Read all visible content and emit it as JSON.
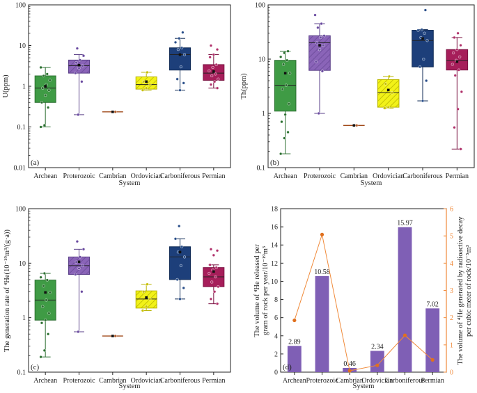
{
  "figure": {
    "background": "#ffffff"
  },
  "categories": [
    "Archean",
    "Proterozoic",
    "Cambrian",
    "Ordovician",
    "Carboniferous",
    "Permian"
  ],
  "colors": {
    "Archean": "#3f9b45",
    "Proterozoic": "#8a64b8",
    "Cambrian": "#c8642a",
    "Ordovician": "#f2f218",
    "Carboniferous": "#1d3f7a",
    "Permian": "#a61e5a",
    "bar": "#7f5fb5",
    "line": "#f08a3a",
    "axis_right": "#f08a3a"
  },
  "chart_data": [
    {
      "type": "box",
      "panel_label": "(a)",
      "ylabel": "U(ppm)",
      "xlabel": "System",
      "yscale": "log",
      "ylim": [
        0.01,
        100
      ],
      "yticks": [
        "0.01",
        "0.1",
        "1",
        "10",
        "100"
      ],
      "yticks_values": [
        0.01,
        0.1,
        1,
        10,
        100
      ],
      "categories": [
        "Archean",
        "Proterozoic",
        "Cambrian",
        "Ordovician",
        "Carboniferous",
        "Permian"
      ],
      "boxes": [
        {
          "name": "Archean",
          "whisker_low": 0.1,
          "q1": 0.4,
          "median": 0.9,
          "q3": 1.8,
          "whisker_high": 2.9,
          "mean": 1.0,
          "points": [
            0.1,
            0.11,
            0.3,
            0.4,
            0.6,
            0.8,
            0.9,
            1.1,
            1.4,
            1.8,
            2.0,
            2.9
          ]
        },
        {
          "name": "Proterozoic",
          "whisker_low": 0.2,
          "q1": 2.1,
          "median": 3.2,
          "q3": 4.4,
          "whisker_high": 6.0,
          "mean": 3.3,
          "points": [
            0.2,
            1.3,
            2.1,
            2.8,
            3.2,
            3.8,
            4.4,
            5.6,
            8.5
          ]
        },
        {
          "name": "Cambrian",
          "whisker_low": 0.235,
          "q1": 0.235,
          "median": 0.235,
          "q3": 0.235,
          "whisker_high": 0.235,
          "mean": 0.235,
          "points": [
            0.235
          ]
        },
        {
          "name": "Ordovician",
          "whisker_low": 0.8,
          "q1": 0.85,
          "median": 1.1,
          "q3": 1.7,
          "whisker_high": 2.2,
          "mean": 1.3,
          "points": [
            0.8,
            0.9,
            1.1,
            1.3,
            2.2
          ]
        },
        {
          "name": "Carboniferous",
          "whisker_low": 0.8,
          "q1": 2.5,
          "median": 6.0,
          "q3": 8.8,
          "whisker_high": 15.0,
          "mean": 6.0,
          "points": [
            0.8,
            1.2,
            1.5,
            3.0,
            6.0,
            8.0,
            8.8,
            12.0,
            15.0,
            21.0
          ]
        },
        {
          "name": "Permian",
          "whisker_low": 0.9,
          "q1": 1.4,
          "median": 2.1,
          "q3": 3.4,
          "whisker_high": 6.0,
          "mean": 2.3,
          "points": [
            0.9,
            1.1,
            1.3,
            1.5,
            1.8,
            2.0,
            2.4,
            2.9,
            3.4,
            5.2,
            6.0,
            8.0,
            10.0
          ]
        }
      ]
    },
    {
      "type": "box",
      "panel_label": "(b)",
      "ylabel": "Th(ppm)",
      "xlabel": "System",
      "yscale": "log",
      "ylim": [
        0.1,
        100
      ],
      "yticks": [
        "0.1",
        "1",
        "10",
        "100"
      ],
      "yticks_values": [
        0.1,
        1,
        10,
        100
      ],
      "categories": [
        "Archean",
        "Proterozoic",
        "Cambrian",
        "Ordovician",
        "Carboniferous",
        "Permian"
      ],
      "boxes": [
        {
          "name": "Archean",
          "whisker_low": 0.18,
          "q1": 1.1,
          "median": 3.3,
          "q3": 9.5,
          "whisker_high": 14.0,
          "mean": 5.5,
          "points": [
            0.18,
            0.35,
            0.45,
            0.7,
            0.95,
            1.5,
            2.8,
            3.3,
            5.5,
            8.0,
            9.5,
            11.0,
            13.0,
            14.0
          ]
        },
        {
          "name": "Proterozoic",
          "whisker_low": 1.0,
          "q1": 6.2,
          "median": 20.0,
          "q3": 27.0,
          "whisker_high": 45.0,
          "mean": 18.0,
          "points": [
            1.0,
            6.0,
            9.0,
            15.0,
            18.0,
            20.0,
            25.0,
            27.0,
            38.0,
            45.0,
            65.0
          ]
        },
        {
          "name": "Cambrian",
          "whisker_low": 0.6,
          "q1": 0.6,
          "median": 0.6,
          "q3": 0.6,
          "whisker_high": 0.6,
          "mean": 0.6,
          "points": [
            0.6
          ]
        },
        {
          "name": "Ordovician",
          "whisker_low": 1.25,
          "q1": 1.3,
          "median": 2.4,
          "q3": 4.2,
          "whisker_high": 4.8,
          "mean": 2.7,
          "points": [
            1.25,
            1.3,
            2.4,
            3.5,
            4.8
          ]
        },
        {
          "name": "Carboniferous",
          "whisker_low": 1.7,
          "q1": 7.2,
          "median": 22.0,
          "q3": 34.0,
          "whisker_high": 35.0,
          "mean": 24.0,
          "points": [
            1.7,
            4.0,
            7.2,
            10.0,
            22.0,
            25.0,
            30.0,
            34.0,
            35.0,
            80.0
          ]
        },
        {
          "name": "Permian",
          "whisker_low": 0.22,
          "q1": 6.3,
          "median": 9.5,
          "q3": 15.0,
          "whisker_high": 25.0,
          "mean": 9.0,
          "points": [
            0.22,
            0.55,
            1.2,
            2.5,
            5.0,
            6.3,
            8.0,
            9.5,
            11.0,
            13.0,
            15.0,
            18.0,
            25.0,
            30.0
          ]
        }
      ]
    },
    {
      "type": "box",
      "panel_label": "(c)",
      "ylabel": "The generation rate of ⁴He(10⁻¹⁹m³/(g·a))",
      "xlabel": "System",
      "yscale": "log",
      "ylim": [
        0.1,
        100
      ],
      "yticks": [
        "0.1",
        "1",
        "10",
        "100"
      ],
      "yticks_values": [
        0.1,
        1,
        10,
        100
      ],
      "categories": [
        "Archean",
        "Proterozoic",
        "Cambrian",
        "Ordovician",
        "Carboniferous",
        "Permian"
      ],
      "boxes": [
        {
          "name": "Archean",
          "whisker_low": 0.19,
          "q1": 0.9,
          "median": 2.1,
          "q3": 4.9,
          "whisker_high": 6.5,
          "mean": 2.9,
          "points": [
            0.19,
            0.25,
            0.5,
            0.8,
            0.9,
            1.2,
            1.6,
            2.1,
            2.9,
            3.8,
            4.9,
            5.5,
            6.5
          ]
        },
        {
          "name": "Proterozoic",
          "whisker_low": 0.55,
          "q1": 6.2,
          "median": 9.0,
          "q3": 13.0,
          "whisker_high": 18.0,
          "mean": 10.6,
          "points": [
            0.55,
            3.0,
            6.2,
            8.0,
            9.0,
            10.5,
            13.0,
            18.0,
            25.0
          ]
        },
        {
          "name": "Cambrian",
          "whisker_low": 0.46,
          "q1": 0.46,
          "median": 0.46,
          "q3": 0.46,
          "whisker_high": 0.46,
          "mean": 0.46,
          "points": [
            0.46
          ]
        },
        {
          "name": "Ordovician",
          "whisker_low": 1.35,
          "q1": 1.5,
          "median": 2.2,
          "q3": 3.1,
          "whisker_high": 4.1,
          "mean": 2.34,
          "points": [
            1.35,
            1.6,
            2.2,
            3.0,
            4.1
          ]
        },
        {
          "name": "Carboniferous",
          "whisker_low": 2.2,
          "q1": 5.0,
          "median": 13.0,
          "q3": 20.0,
          "whisker_high": 28.0,
          "mean": 15.97,
          "points": [
            2.2,
            3.5,
            5.0,
            9.0,
            13.0,
            16.0,
            20.0,
            28.0,
            48.0
          ]
        },
        {
          "name": "Permian",
          "whisker_low": 1.8,
          "q1": 3.7,
          "median": 5.6,
          "q3": 8.3,
          "whisker_high": 9.3,
          "mean": 7.02,
          "points": [
            1.8,
            2.2,
            3.0,
            3.7,
            4.5,
            5.6,
            6.5,
            7.5,
            8.3,
            9.3,
            14.0,
            17.0,
            18.0
          ]
        }
      ]
    },
    {
      "type": "bar+line",
      "panel_label": "(d)",
      "ylabel_left": "The volume of ⁴He released per gram of rock per year/10⁻¹⁹m³",
      "ylabel_right": "The volume of ⁴He generated by radioactive decay per cubic meter of rock/10⁻⁵m³",
      "xlabel": "System",
      "categories": [
        "Archean",
        "Proterozoic",
        "Cambrian",
        "Ordovician",
        "Carboniferous",
        "Permian"
      ],
      "ylim_left": [
        0,
        18
      ],
      "yticks_left": [
        "0",
        "2",
        "4",
        "6",
        "8",
        "10",
        "12",
        "14",
        "16",
        "18"
      ],
      "yticks_left_values": [
        0,
        2,
        4,
        6,
        8,
        10,
        12,
        14,
        16,
        18
      ],
      "ylim_right": [
        0,
        6
      ],
      "yticks_right": [
        "0",
        "1",
        "2",
        "3",
        "4",
        "5",
        "6"
      ],
      "yticks_right_values": [
        0,
        1,
        2,
        3,
        4,
        5,
        6
      ],
      "bar_values": [
        2.89,
        10.58,
        0.46,
        2.34,
        15.97,
        7.02
      ],
      "bar_labels": [
        "2.89",
        "10.58",
        "0.46",
        "2.34",
        "15.97",
        "7.02"
      ],
      "line_values": [
        1.9,
        5.05,
        0.05,
        0.25,
        1.35,
        0.45
      ]
    }
  ]
}
